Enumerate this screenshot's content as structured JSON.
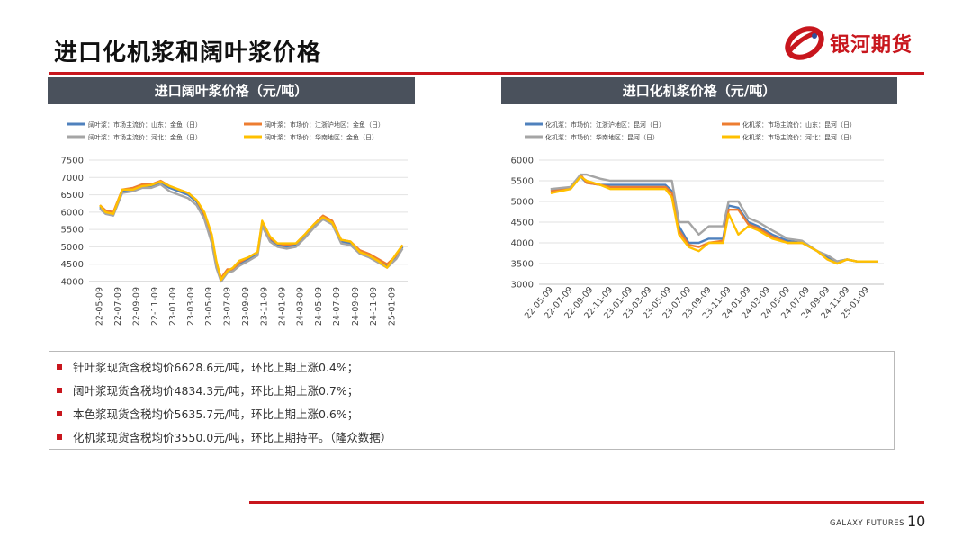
{
  "page": {
    "title": "进口化机浆和阔叶浆价格",
    "logo_text": "银河期货",
    "brand_footer": "GALAXY FUTURES",
    "page_number": "10"
  },
  "colors": {
    "accent": "#c8161d",
    "panel_header": "#4a515c"
  },
  "notes": [
    "针叶浆现货含税均价6628.6元/吨，环比上期上涨0.4%；",
    "阔叶浆现货含税均价4834.3元/吨，环比上期上涨0.7%；",
    "本色浆现货含税均价5635.7元/吨，环比上期上涨0.6%；",
    "化机浆现货含税均价3550.0元/吨，环比上期持平。（隆众数据）"
  ],
  "chart_data": [
    {
      "type": "line",
      "title": "进口阔叶浆价格（元/吨）",
      "ylim": [
        4000,
        7500
      ],
      "yticks": [
        4000,
        4500,
        5000,
        5500,
        6000,
        6500,
        7000,
        7500
      ],
      "xticks": [
        "22-05-09",
        "22-07-09",
        "22-09-09",
        "22-11-09",
        "23-01-09",
        "23-03-09",
        "23-05-09",
        "23-07-09",
        "23-09-09",
        "23-11-09",
        "24-01-09",
        "24-03-09",
        "24-05-09",
        "24-07-09",
        "24-09-09",
        "24-11-09",
        "25-01-09"
      ],
      "series": [
        {
          "name": "阔叶浆：市场主流价：山东：金鱼（日）",
          "color": "#4f81bd",
          "x": [
            "2022-05-01",
            "2022-05-20",
            "2022-06-15",
            "2022-07-15",
            "2022-08-20",
            "2022-09-20",
            "2022-10-20",
            "2022-11-20",
            "2022-12-20",
            "2023-01-20",
            "2023-02-20",
            "2023-03-20",
            "2023-04-15",
            "2023-05-10",
            "2023-05-25",
            "2023-06-10",
            "2023-07-01",
            "2023-07-20",
            "2023-08-10",
            "2023-09-10",
            "2023-10-10",
            "2023-10-25",
            "2023-11-20",
            "2023-12-15",
            "2024-01-15",
            "2024-02-15",
            "2024-03-15",
            "2024-04-15",
            "2024-05-15",
            "2024-06-15",
            "2024-07-15",
            "2024-08-15",
            "2024-09-15",
            "2024-10-15",
            "2024-11-15",
            "2024-12-15",
            "2025-01-15",
            "2025-02-05"
          ],
          "values": [
            6150,
            6000,
            5950,
            6600,
            6650,
            6750,
            6750,
            6850,
            6700,
            6600,
            6500,
            6300,
            5900,
            5200,
            4500,
            4050,
            4300,
            4350,
            4500,
            4650,
            4800,
            5650,
            5200,
            5050,
            5000,
            5050,
            5300,
            5600,
            5850,
            5700,
            5150,
            5100,
            4850,
            4750,
            4600,
            4450,
            4700,
            5000
          ]
        },
        {
          "name": "阔叶浆：市场价：江浙沪地区：金鱼（日）",
          "color": "#ed7d31",
          "x": [
            "2022-05-01",
            "2022-05-20",
            "2022-06-15",
            "2022-07-15",
            "2022-08-20",
            "2022-09-20",
            "2022-10-20",
            "2022-11-20",
            "2022-12-20",
            "2023-01-20",
            "2023-02-20",
            "2023-03-20",
            "2023-04-15",
            "2023-05-10",
            "2023-05-25",
            "2023-06-10",
            "2023-07-01",
            "2023-07-20",
            "2023-08-10",
            "2023-09-10",
            "2023-10-10",
            "2023-10-25",
            "2023-11-20",
            "2023-12-15",
            "2024-01-15",
            "2024-02-15",
            "2024-03-15",
            "2024-04-15",
            "2024-05-15",
            "2024-06-15",
            "2024-07-15",
            "2024-08-15",
            "2024-09-15",
            "2024-10-15",
            "2024-11-15",
            "2024-12-15",
            "2025-01-15",
            "2025-02-05"
          ],
          "values": [
            6200,
            6050,
            6000,
            6650,
            6700,
            6800,
            6800,
            6900,
            6750,
            6650,
            6550,
            6350,
            5950,
            5300,
            4550,
            4100,
            4350,
            4350,
            4550,
            4700,
            4850,
            5700,
            5250,
            5100,
            5050,
            5100,
            5350,
            5650,
            5900,
            5750,
            5200,
            5150,
            4900,
            4800,
            4650,
            4500,
            4750,
            5050
          ]
        },
        {
          "name": "阔叶浆：市场主流价：河北：金鱼（日）",
          "color": "#a5a5a5",
          "x": [
            "2022-05-01",
            "2022-05-20",
            "2022-06-15",
            "2022-07-15",
            "2022-08-20",
            "2022-09-20",
            "2022-10-20",
            "2022-11-20",
            "2022-12-20",
            "2023-01-20",
            "2023-02-20",
            "2023-03-20",
            "2023-04-15",
            "2023-05-10",
            "2023-05-25",
            "2023-06-10",
            "2023-07-01",
            "2023-07-20",
            "2023-08-10",
            "2023-09-10",
            "2023-10-10",
            "2023-10-25",
            "2023-11-20",
            "2023-12-15",
            "2024-01-15",
            "2024-02-15",
            "2024-03-15",
            "2024-04-15",
            "2024-05-15",
            "2024-06-15",
            "2024-07-15",
            "2024-08-15",
            "2024-09-15",
            "2024-10-15",
            "2024-11-15",
            "2024-12-15",
            "2025-01-15",
            "2025-02-05"
          ],
          "values": [
            6100,
            5950,
            5900,
            6550,
            6600,
            6700,
            6700,
            6800,
            6600,
            6500,
            6400,
            6200,
            5800,
            5100,
            4400,
            4000,
            4250,
            4300,
            4450,
            4600,
            4750,
            5600,
            5150,
            5000,
            4950,
            5000,
            5250,
            5550,
            5800,
            5650,
            5100,
            5050,
            4800,
            4700,
            4550,
            4400,
            4650,
            4950
          ]
        },
        {
          "name": "阔叶浆：市场价：华南地区：金鱼（日）",
          "color": "#ffc000",
          "x": [
            "2022-05-01",
            "2022-05-20",
            "2022-06-15",
            "2022-07-15",
            "2022-08-20",
            "2022-09-20",
            "2022-10-20",
            "2022-11-20",
            "2022-12-20",
            "2023-01-20",
            "2023-02-20",
            "2023-03-20",
            "2023-04-15",
            "2023-05-10",
            "2023-05-25",
            "2023-06-10",
            "2023-07-01",
            "2023-07-20",
            "2023-08-10",
            "2023-09-10",
            "2023-10-10",
            "2023-10-25",
            "2023-11-20",
            "2023-12-15",
            "2024-01-15",
            "2024-02-15",
            "2024-03-15",
            "2024-04-15",
            "2024-05-15",
            "2024-06-15",
            "2024-07-15",
            "2024-08-15",
            "2024-09-15",
            "2024-10-15",
            "2024-11-15",
            "2024-12-15",
            "2025-01-15",
            "2025-02-05"
          ],
          "values": [
            6200,
            6000,
            5950,
            6650,
            6650,
            6750,
            6780,
            6880,
            6750,
            6650,
            6550,
            6350,
            6000,
            5350,
            4600,
            4050,
            4300,
            4400,
            4600,
            4700,
            4850,
            5750,
            5300,
            5100,
            5100,
            5100,
            5350,
            5650,
            5850,
            5700,
            5200,
            5150,
            4850,
            4750,
            4600,
            4400,
            4800,
            5050
          ]
        }
      ]
    },
    {
      "type": "line",
      "title": "进口化机浆价格（元/吨）",
      "ylim": [
        3000,
        6000
      ],
      "yticks": [
        3000,
        3500,
        4000,
        4500,
        5000,
        5500,
        6000
      ],
      "xticks": [
        "22-05-09",
        "22-07-09",
        "22-09-09",
        "22-11-09",
        "23-01-09",
        "23-03-09",
        "23-05-09",
        "23-07-09",
        "23-09-09",
        "23-11-09",
        "24-01-09",
        "24-03-09",
        "24-05-09",
        "24-07-09",
        "24-09-09",
        "24-11-09",
        "25-01-09"
      ],
      "series": [
        {
          "name": "化机浆：市场价：江浙沪地区：昆河（日）",
          "color": "#4f81bd",
          "x": [
            "2022-05-01",
            "2022-07-01",
            "2022-08-01",
            "2022-08-20",
            "2022-10-01",
            "2022-11-01",
            "2023-01-01",
            "2023-03-01",
            "2023-04-20",
            "2023-05-10",
            "2023-06-01",
            "2023-07-01",
            "2023-08-01",
            "2023-09-01",
            "2023-10-15",
            "2023-11-01",
            "2023-12-01",
            "2024-01-01",
            "2024-02-01",
            "2024-03-15",
            "2024-05-01",
            "2024-06-15",
            "2024-08-01",
            "2024-09-01",
            "2024-10-01",
            "2024-11-01",
            "2024-12-01",
            "2025-01-01",
            "2025-02-05"
          ],
          "values": [
            5300,
            5300,
            5600,
            5450,
            5400,
            5400,
            5400,
            5400,
            5400,
            5250,
            4400,
            4000,
            4000,
            4100,
            4100,
            4900,
            4850,
            4500,
            4400,
            4200,
            4050,
            4000,
            3800,
            3650,
            3550,
            3600,
            3550,
            3550,
            3550
          ]
        },
        {
          "name": "化机浆：市场主流价：山东：昆河（日）",
          "color": "#ed7d31",
          "x": [
            "2022-05-01",
            "2022-07-01",
            "2022-08-01",
            "2022-08-20",
            "2022-10-01",
            "2022-11-01",
            "2023-01-01",
            "2023-03-01",
            "2023-04-20",
            "2023-05-10",
            "2023-06-01",
            "2023-07-01",
            "2023-08-01",
            "2023-09-01",
            "2023-10-15",
            "2023-11-01",
            "2023-12-01",
            "2024-01-01",
            "2024-02-01",
            "2024-03-15",
            "2024-05-01",
            "2024-06-15",
            "2024-08-01",
            "2024-09-01",
            "2024-10-01",
            "2024-11-01",
            "2024-12-01",
            "2025-01-01",
            "2025-02-05"
          ],
          "values": [
            5250,
            5300,
            5650,
            5450,
            5400,
            5350,
            5350,
            5350,
            5350,
            5200,
            4300,
            3950,
            3900,
            4000,
            4050,
            4800,
            4800,
            4450,
            4350,
            4150,
            4000,
            4000,
            3800,
            3600,
            3500,
            3600,
            3550,
            3550,
            3550
          ]
        },
        {
          "name": "化机浆：市场价：华南地区：昆河（日）",
          "color": "#a5a5a5",
          "x": [
            "2022-05-01",
            "2022-07-01",
            "2022-08-01",
            "2022-08-20",
            "2022-10-01",
            "2022-11-01",
            "2023-01-01",
            "2023-03-01",
            "2023-04-20",
            "2023-05-10",
            "2023-06-01",
            "2023-07-01",
            "2023-08-01",
            "2023-09-01",
            "2023-10-15",
            "2023-11-01",
            "2023-12-01",
            "2024-01-01",
            "2024-02-01",
            "2024-03-15",
            "2024-05-01",
            "2024-06-15",
            "2024-08-01",
            "2024-09-01",
            "2024-10-01",
            "2024-11-01",
            "2024-12-01",
            "2025-01-01",
            "2025-02-05"
          ],
          "values": [
            5300,
            5350,
            5650,
            5650,
            5550,
            5500,
            5500,
            5500,
            5500,
            5500,
            4500,
            4500,
            4200,
            4400,
            4400,
            5000,
            5000,
            4600,
            4500,
            4300,
            4100,
            4050,
            3800,
            3700,
            3550,
            3600,
            3550,
            3550,
            3550
          ]
        },
        {
          "name": "化机浆：市场主流价：河北：昆河（日）",
          "color": "#ffc000",
          "x": [
            "2022-05-01",
            "2022-07-01",
            "2022-08-01",
            "2022-08-20",
            "2022-10-01",
            "2022-11-01",
            "2023-01-01",
            "2023-03-01",
            "2023-04-20",
            "2023-05-10",
            "2023-06-01",
            "2023-07-01",
            "2023-08-01",
            "2023-09-01",
            "2023-10-15",
            "2023-11-01",
            "2023-12-01",
            "2024-01-01",
            "2024-02-01",
            "2024-03-15",
            "2024-05-01",
            "2024-06-15",
            "2024-08-01",
            "2024-09-01",
            "2024-10-01",
            "2024-11-01",
            "2024-12-01",
            "2025-01-01",
            "2025-02-05"
          ],
          "values": [
            5200,
            5300,
            5600,
            5500,
            5400,
            5300,
            5300,
            5300,
            5300,
            5100,
            4200,
            3900,
            3800,
            4000,
            4000,
            4700,
            4200,
            4400,
            4300,
            4100,
            4000,
            4000,
            3800,
            3600,
            3500,
            3600,
            3550,
            3550,
            3550
          ]
        }
      ]
    }
  ]
}
